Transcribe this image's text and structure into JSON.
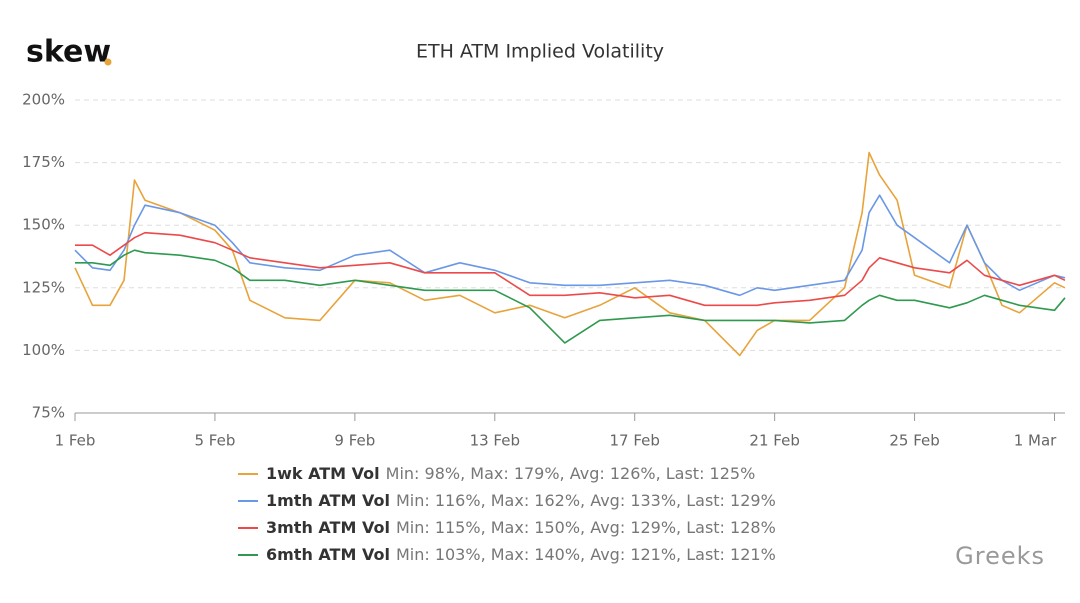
{
  "logo": "skew",
  "watermark": "Greeks",
  "chart_data": {
    "type": "line",
    "title": "ETH ATM Implied Volatility",
    "x": [
      0,
      0.5,
      1,
      1.4,
      1.7,
      2,
      3,
      4,
      4.5,
      5,
      6,
      7,
      8,
      9,
      10,
      11,
      12,
      13,
      14,
      15,
      16,
      17,
      18,
      19,
      19.5,
      20,
      21,
      22,
      22.5,
      22.7,
      23,
      23.5,
      24,
      25,
      25.5,
      26,
      26.5,
      27,
      28,
      28.3
    ],
    "xlim": [
      0,
      28.3
    ],
    "xticks": [
      {
        "value": 0,
        "label": "1 Feb"
      },
      {
        "value": 4,
        "label": "5 Feb"
      },
      {
        "value": 8,
        "label": "9 Feb"
      },
      {
        "value": 12,
        "label": "13 Feb"
      },
      {
        "value": 16,
        "label": "17 Feb"
      },
      {
        "value": 20,
        "label": "21 Feb"
      },
      {
        "value": 24,
        "label": "25 Feb"
      },
      {
        "value": 28,
        "label": "1 Mar"
      }
    ],
    "ylim": [
      75,
      200
    ],
    "yticks": [
      {
        "value": 75,
        "label": "75%"
      },
      {
        "value": 100,
        "label": "100%"
      },
      {
        "value": 125,
        "label": "125%"
      },
      {
        "value": 150,
        "label": "150%"
      },
      {
        "value": 175,
        "label": "175%"
      },
      {
        "value": 200,
        "label": "200%"
      }
    ],
    "grid": true,
    "series": [
      {
        "name": "1wk ATM Vol",
        "stats": "Min: 98%, Max: 179%, Avg: 126%, Last: 125%",
        "color": "#e8a33a",
        "values": [
          133,
          118,
          118,
          128,
          168,
          160,
          155,
          148,
          140,
          120,
          113,
          112,
          128,
          127,
          120,
          122,
          115,
          118,
          113,
          118,
          125,
          115,
          112,
          98,
          108,
          112,
          112,
          125,
          155,
          179,
          170,
          160,
          130,
          125,
          150,
          135,
          118,
          115,
          127,
          125
        ]
      },
      {
        "name": "1mth ATM Vol",
        "stats": "Min: 116%, Max: 162%, Avg: 133%, Last: 129%",
        "color": "#6a98e6",
        "values": [
          140,
          133,
          132,
          140,
          150,
          158,
          155,
          150,
          143,
          135,
          133,
          132,
          138,
          140,
          131,
          135,
          132,
          127,
          126,
          126,
          127,
          128,
          126,
          122,
          125,
          124,
          126,
          128,
          140,
          155,
          162,
          150,
          145,
          135,
          150,
          135,
          128,
          124,
          130,
          129
        ]
      },
      {
        "name": "3mth ATM Vol",
        "stats": "Min: 115%, Max: 150%, Avg: 129%, Last: 128%",
        "color": "#ec4a4a",
        "values": [
          142,
          142,
          138,
          142,
          145,
          147,
          146,
          143,
          140,
          137,
          135,
          133,
          134,
          135,
          131,
          131,
          131,
          122,
          122,
          123,
          121,
          122,
          118,
          118,
          118,
          119,
          120,
          122,
          128,
          133,
          137,
          135,
          133,
          131,
          136,
          130,
          128,
          126,
          130,
          128
        ]
      },
      {
        "name": "6mth ATM Vol",
        "stats": "Min: 103%, Max: 140%, Avg: 121%, Last: 121%",
        "color": "#2f9a4f",
        "values": [
          135,
          135,
          134,
          138,
          140,
          139,
          138,
          136,
          133,
          128,
          128,
          126,
          128,
          126,
          124,
          124,
          124,
          117,
          103,
          112,
          113,
          114,
          112,
          112,
          112,
          112,
          111,
          112,
          118,
          120,
          122,
          120,
          120,
          117,
          119,
          122,
          120,
          118,
          116,
          121
        ]
      }
    ]
  }
}
